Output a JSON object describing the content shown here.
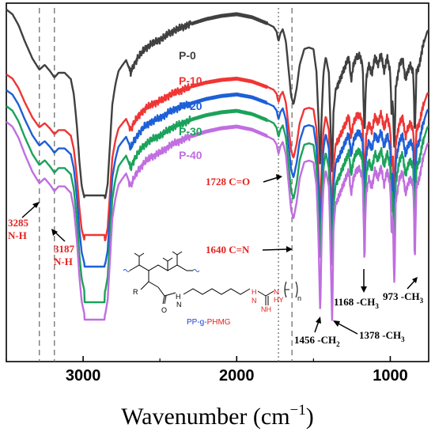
{
  "chart_data": {
    "type": "line",
    "xlabel": "Wavenumber (cm",
    "xlabel_sup": "−1",
    "xlabel_close": ")",
    "ylabel": "",
    "xlim": [
      3500,
      750
    ],
    "x_reversed": true,
    "grid": false,
    "x_ticks": [
      3000,
      2000,
      1000
    ],
    "series": [
      {
        "name": "P-0",
        "color": "#404040"
      },
      {
        "name": "P-10",
        "color": "#ef3535"
      },
      {
        "name": "P-20",
        "color": "#1d5fd6"
      },
      {
        "name": "P-30",
        "color": "#1ba25a"
      },
      {
        "name": "P-40",
        "color": "#c06ee0"
      }
    ],
    "reference_lines": [
      {
        "x": 3285,
        "style": "dashed"
      },
      {
        "x": 3187,
        "style": "dashed"
      },
      {
        "x": 1728,
        "style": "dotted"
      },
      {
        "x": 1640,
        "style": "dashed"
      }
    ],
    "annotations": [
      {
        "line1": "3285",
        "line2": "N-H",
        "color": "#e8201e"
      },
      {
        "line1": "3187",
        "line2": "N-H",
        "color": "#e8201e"
      },
      {
        "text": "1728 C=O",
        "color": "#e8201e"
      },
      {
        "text": "1640 C=N",
        "color": "#e8201e"
      },
      {
        "text": "1456 -CH",
        "sub": "2",
        "color": "#000000"
      },
      {
        "text": "1378 -CH",
        "sub": "3",
        "color": "#000000"
      },
      {
        "text": "1168 -CH",
        "sub": "3",
        "color": "#000000"
      },
      {
        "text": "973 -CH",
        "sub": "3",
        "color": "#000000"
      }
    ]
  },
  "molecule": {
    "name_part1": "PP-g-",
    "name_part2": "PHMG",
    "name_color1": "#1d3fd6",
    "name_color2": "#e8201e",
    "atom_r": "R",
    "atom_o": "O",
    "atom_h": "H",
    "atom_n": "N",
    "atom_nh": "NH",
    "atom_hn": "H",
    "atom_hy": "HY",
    "atom_n_sub": "n"
  }
}
